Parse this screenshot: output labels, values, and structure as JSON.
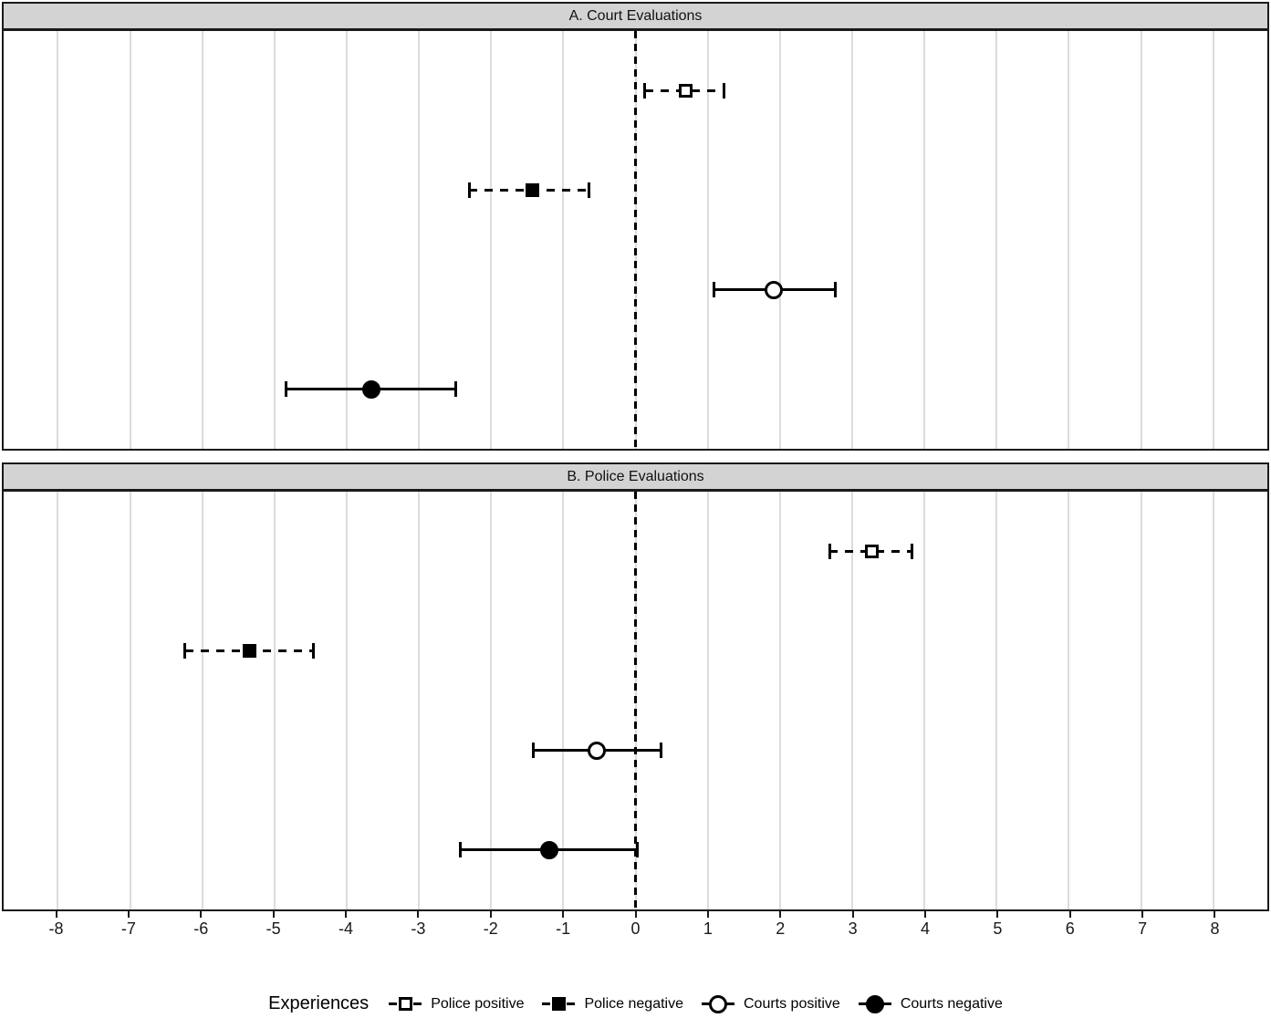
{
  "chart_data": {
    "type": "scatter",
    "subtype": "forest-coefficient-plot-with-ci-error-bars",
    "xlim": [
      -8.75,
      8.75
    ],
    "x_ticks": [
      -8,
      -7,
      -6,
      -5,
      -4,
      -3,
      -2,
      -1,
      0,
      1,
      2,
      3,
      4,
      5,
      6,
      7,
      8
    ],
    "zero_reference_line": 0,
    "grid": "vertical-major-only",
    "row_fractions": [
      0.143,
      0.381,
      0.619,
      0.858
    ],
    "panels": [
      {
        "title": "A. Court Evaluations",
        "points": [
          {
            "label": "Police positive",
            "marker": "open-square",
            "linetype": "dashed",
            "estimate": 0.7,
            "ci_low": 0.13,
            "ci_high": 1.22
          },
          {
            "label": "Police negative",
            "marker": "filled-square",
            "linetype": "dashed",
            "estimate": -1.43,
            "ci_low": -2.3,
            "ci_high": -0.64
          },
          {
            "label": "Courts positive",
            "marker": "open-circle",
            "linetype": "solid",
            "estimate": 1.91,
            "ci_low": 1.09,
            "ci_high": 2.77
          },
          {
            "label": "Courts negative",
            "marker": "filled-circle",
            "linetype": "solid",
            "estimate": -3.66,
            "ci_low": -4.84,
            "ci_high": -2.49
          }
        ]
      },
      {
        "title": "B. Police Evaluations",
        "points": [
          {
            "label": "Police positive",
            "marker": "open-square",
            "linetype": "dashed",
            "estimate": 3.27,
            "ci_low": 2.69,
            "ci_high": 3.83
          },
          {
            "label": "Police negative",
            "marker": "filled-square",
            "linetype": "dashed",
            "estimate": -5.34,
            "ci_low": -6.24,
            "ci_high": -4.46
          },
          {
            "label": "Courts positive",
            "marker": "open-circle",
            "linetype": "solid",
            "estimate": -0.54,
            "ci_low": -1.41,
            "ci_high": 0.36
          },
          {
            "label": "Courts negative",
            "marker": "filled-circle",
            "linetype": "solid",
            "estimate": -1.19,
            "ci_low": -2.42,
            "ci_high": 0.03
          }
        ]
      }
    ],
    "legend": {
      "title": "Experiences",
      "position": "bottom",
      "items": [
        {
          "label": "Police positive",
          "marker": "open-square",
          "linetype": "dashed"
        },
        {
          "label": "Police negative",
          "marker": "filled-square",
          "linetype": "dashed"
        },
        {
          "label": "Courts positive",
          "marker": "open-circle",
          "linetype": "solid"
        },
        {
          "label": "Courts negative",
          "marker": "filled-circle",
          "linetype": "solid"
        }
      ]
    },
    "colors": {
      "foreground": "#000000",
      "panel_background": "#ffffff",
      "panel_border": "#1a1a1a",
      "strip_fill": "#d3d3d3",
      "gridline": "#dcdcdc"
    }
  }
}
